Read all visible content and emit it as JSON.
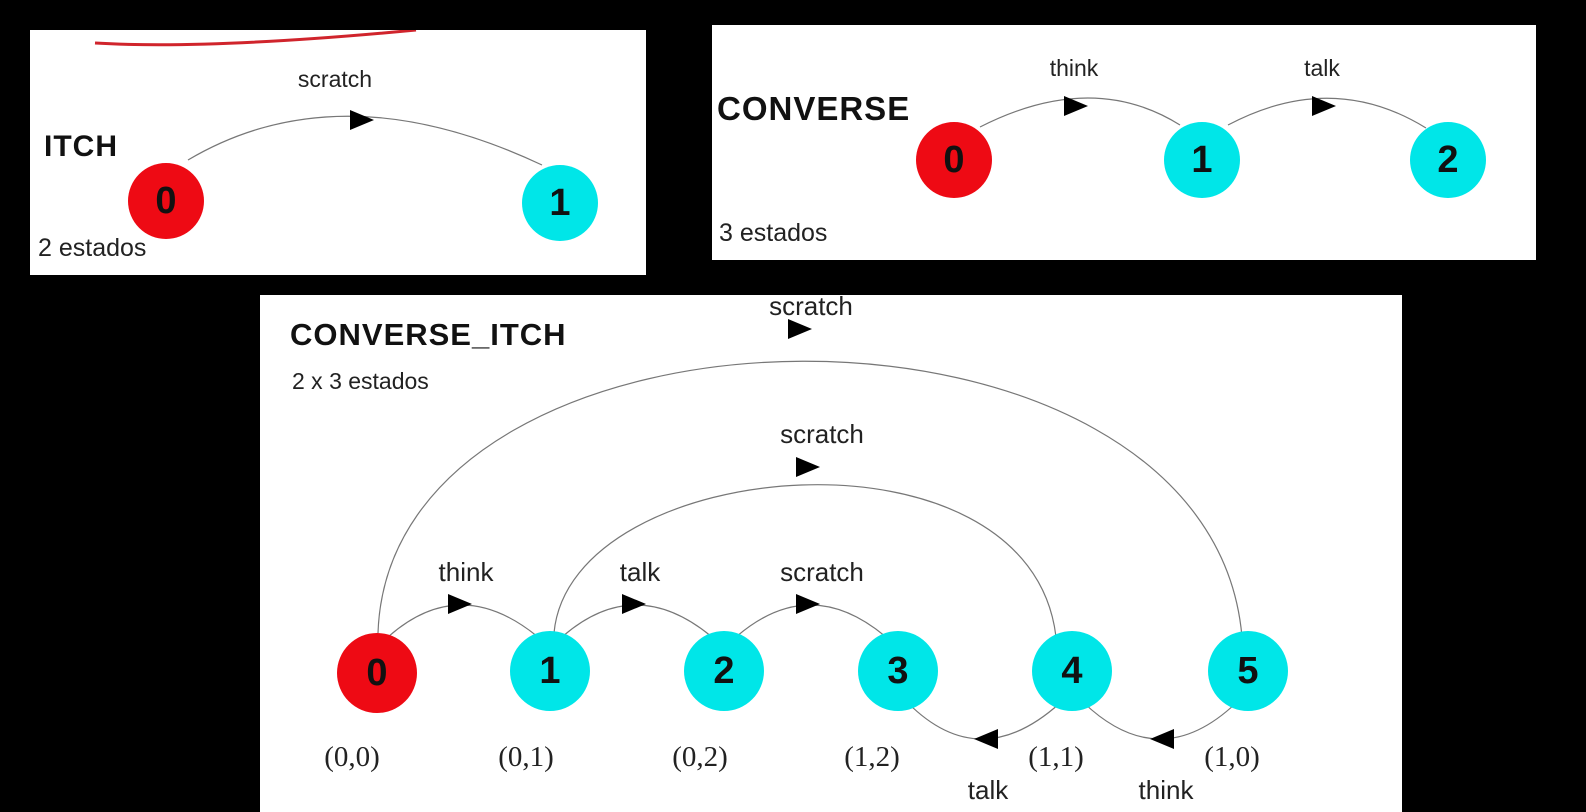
{
  "itch": {
    "title": "ITCH",
    "states_note": "2 estados",
    "states": [
      "0",
      "1"
    ],
    "edges": [
      {
        "label": "scratch"
      }
    ]
  },
  "converse": {
    "title": "CONVERSE",
    "states_note": "3 estados",
    "states": [
      "0",
      "1",
      "2"
    ],
    "edges": [
      {
        "label": "think"
      },
      {
        "label": "talk"
      }
    ]
  },
  "converse_itch": {
    "title": "CONVERSE_ITCH",
    "states_note": "2 x 3 estados",
    "states": [
      "0",
      "1",
      "2",
      "3",
      "4",
      "5"
    ],
    "pairs": [
      "(0,0)",
      "(0,1)",
      "(0,2)",
      "(1,2)",
      "(1,1)",
      "(1,0)"
    ],
    "edges": [
      {
        "label": "think"
      },
      {
        "label": "talk"
      },
      {
        "label": "scratch"
      },
      {
        "label": "scratch"
      },
      {
        "label": "scratch"
      },
      {
        "label": "talk"
      },
      {
        "label": "think"
      }
    ]
  },
  "colors": {
    "initial_state": "#ee0a14",
    "state": "#00e6e8",
    "annotation_stroke": "#d0242c"
  }
}
